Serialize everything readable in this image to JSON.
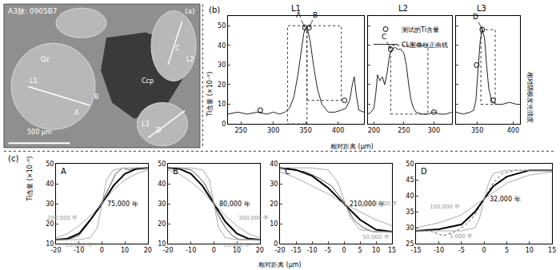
{
  "chart_data": [
    {
      "type": "image",
      "panel": "(a)",
      "title": "A3脉: 0905B7",
      "labels": [
        "Qz",
        "Ccp",
        "L1",
        "L2",
        "L3",
        "A",
        "B",
        "C",
        "D"
      ],
      "scale_bar": "500 μm"
    },
    {
      "type": "line",
      "panel": "(b)",
      "ylabel": "Ti含量 (×10⁻⁶)",
      "y2label": "相对阴极发光强度",
      "xlabel": "相对距离 (μm)",
      "ylim": [
        0,
        55
      ],
      "yticks": [
        0,
        10,
        20,
        30,
        40,
        50
      ],
      "subplots": [
        {
          "title": "L1",
          "xlim": [
            230,
            440
          ],
          "xticks": [
            250,
            300,
            350,
            400
          ],
          "series": [
            {
              "name": "CL图像校正曲线",
              "type": "line",
              "color": "#222222",
              "x": [
                230,
                245,
                260,
                275,
                290,
                300,
                310,
                318,
                325,
                332,
                338,
                343,
                347,
                350,
                353,
                357,
                362,
                368,
                375,
                385,
                395,
                405,
                412,
                418,
                422,
                425,
                428,
                432,
                440
              ],
              "values": [
                5,
                6,
                5,
                6,
                5,
                6,
                5,
                6,
                8,
                14,
                25,
                38,
                46,
                49,
                48,
                42,
                30,
                18,
                10,
                6,
                6,
                7,
                8,
                12,
                20,
                24,
                15,
                7,
                6
              ]
            },
            {
              "name": "测试的Ti含量",
              "type": "scatter",
              "marker": "open-circle",
              "color": "#000000",
              "x": [
                280,
                349,
                355,
                410
              ],
              "values": [
                7,
                49,
                49,
                12
              ],
              "point_labels": [
                null,
                "A",
                "B",
                null
              ]
            }
          ],
          "boxes": [
            {
              "x0": 322,
              "x1": 352,
              "y0": 0,
              "y1": 50
            },
            {
              "x0": 352,
              "x1": 405,
              "y0": 12,
              "y1": 50
            }
          ]
        },
        {
          "title": "L2",
          "xlim": [
            190,
            330
          ],
          "xticks": [
            200,
            250,
            300
          ],
          "series": [
            {
              "type": "line",
              "color": "#222222",
              "x": [
                190,
                195,
                200,
                203,
                206,
                210,
                214,
                218,
                222,
                226,
                230,
                235,
                240,
                245,
                250,
                254,
                258,
                262,
                266,
                270,
                280,
                290,
                300,
                310,
                320,
                330
              ],
              "values": [
                5,
                6,
                8,
                15,
                25,
                22,
                24,
                20,
                26,
                35,
                38,
                39,
                38,
                38,
                36,
                30,
                20,
                12,
                8,
                6,
                5,
                5,
                6,
                5,
                5,
                6
              ]
            },
            {
              "type": "scatter",
              "marker": "open-circle",
              "color": "#000000",
              "x": [
                228,
                300
              ],
              "values": [
                38,
                6
              ],
              "point_labels": [
                "C",
                null
              ]
            }
          ],
          "boxes": [
            {
              "x0": 228,
              "x1": 290,
              "y0": 5,
              "y1": 40
            }
          ]
        },
        {
          "title": "L3",
          "xlim": [
            320,
            410
          ],
          "xticks": [
            350,
            400
          ],
          "series": [
            {
              "type": "line",
              "color": "#222222",
              "x": [
                320,
                330,
                340,
                345,
                348,
                351,
                354,
                357,
                360,
                363,
                366,
                370,
                375,
                385,
                395,
                405,
                410
              ],
              "values": [
                6,
                5,
                6,
                7,
                12,
                28,
                42,
                48,
                44,
                30,
                18,
                12,
                10,
                10,
                11,
                10,
                10
              ]
            },
            {
              "type": "scatter",
              "marker": "open-circle",
              "color": "#000000",
              "x": [
                349,
                357,
                372
              ],
              "values": [
                30,
                48,
                12
              ],
              "point_labels": [
                null,
                "D",
                null
              ]
            }
          ],
          "boxes": [
            {
              "x0": 355,
              "x1": 375,
              "y0": 10,
              "y1": 48
            }
          ]
        }
      ]
    },
    {
      "type": "line",
      "panel": "(c)",
      "ylabel": "Ti含量 (×10⁻⁶)",
      "xlabel": "相对距离 (μm)",
      "subplots": [
        {
          "title": "A",
          "xlim": [
            -20,
            20
          ],
          "xticks": [
            -20,
            -10,
            0,
            10,
            20
          ],
          "ylim": [
            10,
            50
          ],
          "yticks": [
            10,
            20,
            30,
            40,
            50
          ],
          "series": [
            {
              "color": "#555555",
              "line_style": "solid",
              "x": [
                -20,
                -15,
                -10,
                -6,
                -3,
                0,
                3,
                6,
                9,
                12,
                15,
                20
              ],
              "values": [
                12,
                12,
                14,
                20,
                25,
                31,
                38,
                45,
                48,
                47,
                48,
                48
              ]
            },
            {
              "name": "75,000 年",
              "color": "#000000",
              "line_style": "solid",
              "x": [
                -20,
                -15,
                -10,
                -5,
                0,
                5,
                10,
                15,
                20
              ],
              "values": [
                12,
                12.5,
                15,
                22,
                30,
                39,
                45,
                47.5,
                48
              ]
            },
            {
              "name": "200,000 年",
              "color": "#aaaaaa",
              "line_style": "solid",
              "x": [
                -20,
                -15,
                -10,
                -5,
                0,
                5,
                10,
                15,
                20
              ],
              "values": [
                13,
                15,
                19,
                24,
                30,
                37,
                42,
                45,
                47
              ]
            },
            {
              "name": "10,000 年",
              "color": "#aaaaaa",
              "line_style": "solid",
              "x": [
                -20,
                -10,
                -5,
                -2,
                0,
                2,
                5,
                10,
                20
              ],
              "values": [
                12,
                12,
                13,
                18,
                30,
                42,
                47,
                48,
                48
              ]
            }
          ]
        },
        {
          "title": "B",
          "xlim": [
            -20,
            20
          ],
          "xticks": [
            -20,
            -10,
            0,
            10,
            20
          ],
          "ylim": [
            10,
            50
          ],
          "yticks": [
            10,
            20,
            30,
            40,
            50
          ],
          "series": [
            {
              "color": "#555555",
              "line_style": "solid",
              "x": [
                -20,
                -15,
                -10,
                -7,
                -4,
                -1,
                2,
                5,
                8,
                11,
                15,
                20
              ],
              "values": [
                48,
                48,
                47,
                44,
                40,
                33,
                24,
                18,
                14,
                12,
                12,
                12
              ]
            },
            {
              "name": "80,000 年",
              "color": "#000000",
              "line_style": "solid",
              "x": [
                -20,
                -15,
                -10,
                -5,
                0,
                5,
                10,
                15,
                20
              ],
              "values": [
                48,
                47.5,
                45,
                39,
                30,
                21,
                15,
                12.5,
                12
              ]
            },
            {
              "name": "300,000 年",
              "color": "#aaaaaa",
              "line_style": "solid",
              "x": [
                -20,
                -15,
                -10,
                -5,
                0,
                5,
                10,
                15,
                20
              ],
              "values": [
                47,
                45,
                41,
                36,
                30,
                24,
                19,
                15,
                13
              ]
            },
            {
              "name": "10,000 年",
              "color": "#aaaaaa",
              "line_style": "solid",
              "x": [
                -20,
                -10,
                -5,
                -2,
                0,
                2,
                5,
                10,
                20
              ],
              "values": [
                48,
                48,
                47,
                42,
                30,
                18,
                13,
                12,
                12
              ]
            }
          ]
        },
        {
          "title": "C",
          "xlim": [
            -20,
            15
          ],
          "xticks": [
            -20,
            -15,
            -10,
            -5,
            0,
            5,
            10,
            15
          ],
          "ylim": [
            0,
            40
          ],
          "yticks": [
            0,
            10,
            20,
            30,
            40
          ],
          "series": [
            {
              "color": "#555555",
              "line_style": "solid",
              "x": [
                -20,
                -16,
                -12,
                -8,
                -4,
                0,
                3,
                6,
                9,
                12,
                15
              ],
              "values": [
                38,
                37,
                36,
                33,
                29,
                21,
                12,
                8,
                6,
                6,
                6
              ]
            },
            {
              "name": "210,000 年",
              "color": "#000000",
              "line_style": "solid",
              "x": [
                -20,
                -15,
                -10,
                -5,
                0,
                5,
                10,
                15
              ],
              "values": [
                38,
                37,
                34,
                28,
                20,
                12,
                7,
                6
              ]
            },
            {
              "name": "1,000,000 年",
              "color": "#aaaaaa",
              "line_style": "solid",
              "x": [
                -20,
                -15,
                -10,
                -5,
                0,
                5,
                10,
                15
              ],
              "values": [
                36,
                33,
                29,
                25,
                20,
                16,
                12,
                9
              ]
            },
            {
              "name": "50,000 年",
              "color": "#aaaaaa",
              "line_style": "solid",
              "x": [
                -20,
                -10,
                -5,
                -2,
                0,
                2,
                5,
                10,
                15
              ],
              "values": [
                38,
                38,
                37,
                31,
                22,
                13,
                7,
                6,
                6
              ]
            }
          ]
        },
        {
          "title": "D",
          "xlim": [
            -15,
            15
          ],
          "xticks": [
            -15,
            -10,
            -5,
            0,
            5,
            10,
            15
          ],
          "ylim": [
            25,
            50
          ],
          "yticks": [
            25,
            30,
            35,
            40,
            45,
            50
          ],
          "series": [
            {
              "color": "#555555",
              "line_style": "dot",
              "x": [
                -15,
                -12,
                -9,
                -6,
                -4,
                -2,
                0,
                2,
                4,
                7,
                10,
                15
              ],
              "values": [
                29,
                29,
                27.5,
                29,
                31,
                34,
                39,
                44,
                47,
                48,
                48,
                48
              ]
            },
            {
              "name": "32,000 年",
              "color": "#000000",
              "line_style": "solid",
              "x": [
                -15,
                -10,
                -5,
                -2,
                0,
                2,
                5,
                10,
                15
              ],
              "values": [
                29,
                29.5,
                31,
                35,
                39,
                43,
                46,
                48,
                48
              ]
            },
            {
              "name": "100,000 年",
              "color": "#aaaaaa",
              "line_style": "solid",
              "x": [
                -15,
                -10,
                -5,
                0,
                5,
                10,
                15
              ],
              "values": [
                30,
                31.5,
                34,
                39,
                44,
                46.5,
                47.5
              ]
            },
            {
              "name": "5,000 年",
              "color": "#aaaaaa",
              "line_style": "solid",
              "x": [
                -15,
                -5,
                -2,
                -1,
                0,
                1,
                2,
                5,
                15
              ],
              "values": [
                29,
                29,
                30,
                33,
                39,
                44,
                47,
                48,
                48
              ]
            }
          ]
        }
      ]
    }
  ]
}
